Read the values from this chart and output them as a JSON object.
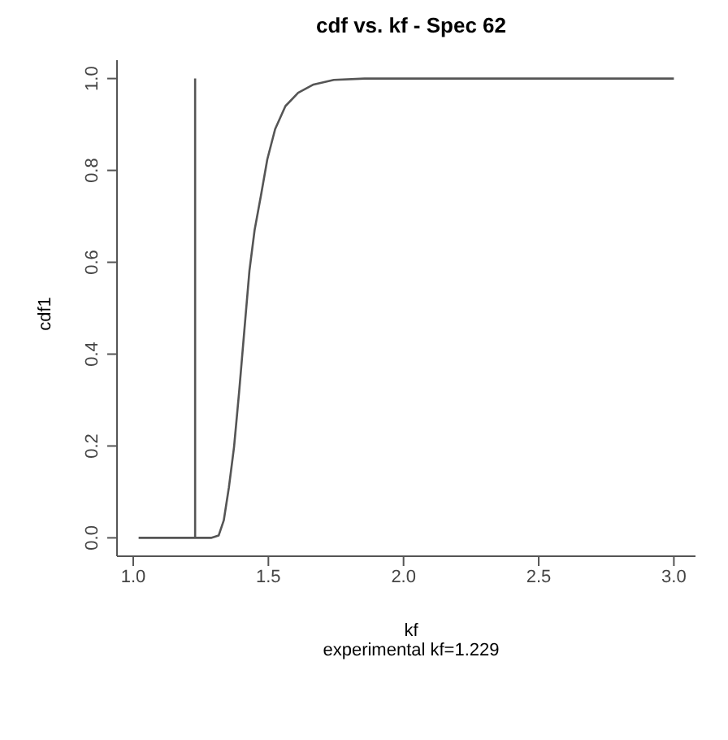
{
  "chart_data": {
    "type": "line",
    "title": "cdf vs. kf - Spec 62",
    "xlabel": "kf",
    "ylabel": "cdf1",
    "annotations": [
      "experimental kf=1.229"
    ],
    "series": [
      {
        "color": "#555555",
        "x": [
          1.02,
          1.288,
          1.316,
          1.335,
          1.354,
          1.373,
          1.392,
          1.411,
          1.43,
          1.449,
          1.473,
          1.496,
          1.525,
          1.563,
          1.61,
          1.667,
          1.742,
          1.856,
          3.0
        ],
        "values": [
          0,
          0,
          0.005,
          0.038,
          0.11,
          0.198,
          0.319,
          0.451,
          0.582,
          0.67,
          0.747,
          0.824,
          0.89,
          0.94,
          0.969,
          0.987,
          0.997,
          1.0,
          1.0
        ]
      },
      {
        "color": "#555555",
        "x": [
          1.229,
          1.229
        ],
        "values": [
          0,
          1
        ]
      }
    ],
    "xlim": [
      0.94,
      3.08
    ],
    "xticks": [
      {
        "value": 1,
        "label": "1.0"
      },
      1.5,
      {
        "value": 2,
        "label": "2.0"
      },
      2.5,
      {
        "value": 3,
        "label": "3.0"
      }
    ],
    "ylim": [
      -0.04,
      1.04
    ],
    "yticks": [
      {
        "value": 0,
        "label": "0.0"
      },
      0.2,
      0.4,
      0.6,
      0.8,
      {
        "value": 1,
        "label": "1.0"
      }
    ],
    "marker": "none",
    "line_style": "solid"
  }
}
